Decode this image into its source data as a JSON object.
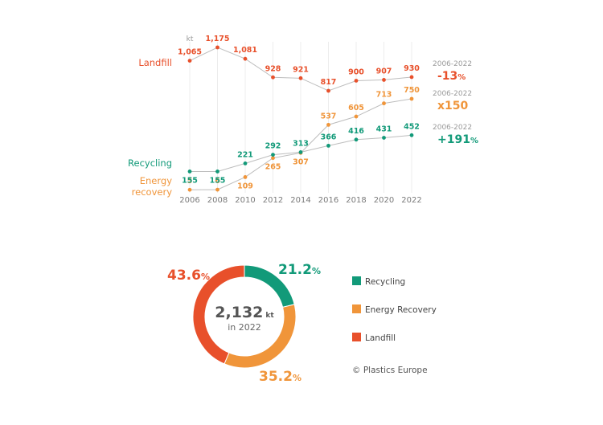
{
  "colors": {
    "landfill": "#e8502b",
    "energy_recovery": "#f0953a",
    "recycling": "#129a79",
    "axis_text": "#9a9a9a",
    "grid": "#ececec",
    "center_text": "#555555",
    "line": "#bdbdbd"
  },
  "chart_data": [
    {
      "type": "line",
      "unit": "kt",
      "x": [
        "2006",
        "2008",
        "2010",
        "2012",
        "2014",
        "2016",
        "2018",
        "2020",
        "2022"
      ],
      "series": [
        {
          "name": "Landfill",
          "values": [
            1065,
            1175,
            1081,
            928,
            921,
            817,
            900,
            907,
            930
          ],
          "value_labels": [
            "1,065",
            "1,175",
            "1,081",
            "928",
            "921",
            "817",
            "900",
            "907",
            "930"
          ],
          "change_period": "2006-2022",
          "change": "-13",
          "change_suffix": "%"
        },
        {
          "name": "Energy recovery",
          "name_lines": [
            "Energy",
            "recovery"
          ],
          "values": [
            5,
            6,
            109,
            265,
            307,
            537,
            605,
            713,
            750
          ],
          "value_labels": [
            "5",
            "6",
            "109",
            "265",
            "307",
            "537",
            "605",
            "713",
            "750"
          ],
          "change_period": "2006-2022",
          "change": "x150",
          "change_suffix": ""
        },
        {
          "name": "Recycling",
          "values": [
            155,
            155,
            221,
            292,
            313,
            366,
            416,
            431,
            452
          ],
          "value_labels": [
            "155",
            "155",
            "221",
            "292",
            "313",
            "366",
            "416",
            "431",
            "452"
          ],
          "change_period": "2006-2022",
          "change": "+191",
          "change_suffix": "%"
        }
      ]
    },
    {
      "type": "pie",
      "style": "donut",
      "center_value": "2,132",
      "center_unit": "kt",
      "center_caption": "in 2022",
      "slices": [
        {
          "name": "Recycling",
          "value": 21.2,
          "label": "21.2",
          "suffix": "%"
        },
        {
          "name": "Energy Recovery",
          "value": 35.2,
          "label": "35.2",
          "suffix": "%"
        },
        {
          "name": "Landfill",
          "value": 43.6,
          "label": "43.6",
          "suffix": "%"
        }
      ],
      "legend": [
        "Recycling",
        "Energy Recovery",
        "Landfill"
      ],
      "legend_placement": "right"
    }
  ],
  "source": "© Plastics Europe"
}
